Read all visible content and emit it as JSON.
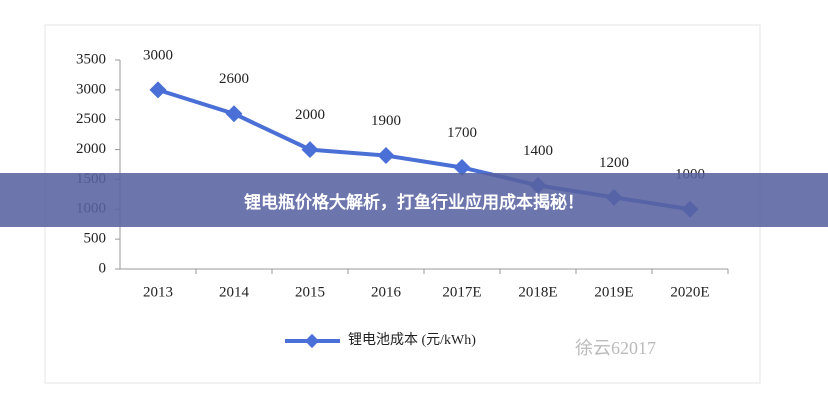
{
  "chart_data": {
    "type": "line",
    "categories": [
      "2013",
      "2014",
      "2015",
      "2016",
      "2017E",
      "2018E",
      "2019E",
      "2020E"
    ],
    "series": [
      {
        "name": "锂电池成本 (元/kWh)",
        "color": "#4a6fd6",
        "values": [
          3000,
          2600,
          2000,
          1900,
          1700,
          1400,
          1200,
          1000
        ]
      }
    ],
    "ylim": [
      0,
      3500
    ],
    "yticks": [
      0,
      500,
      1000,
      1500,
      2000,
      2500,
      3000,
      3500
    ],
    "grid": false
  },
  "banner": "锂电瓶价格大解析，打鱼行业应用成本揭秘！",
  "watermark": "徐云62017"
}
